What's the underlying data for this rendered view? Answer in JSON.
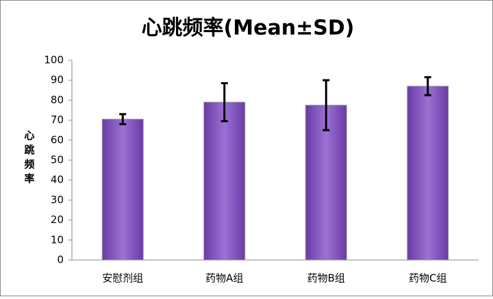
{
  "chart_data": {
    "type": "bar",
    "title": "心跳频率(Mean±SD)",
    "y_label": "心跳频率",
    "categories": [
      "安慰剂组",
      "药物A组",
      "药物B组",
      "药物C组"
    ],
    "values": [
      70.5,
      79,
      77.5,
      87
    ],
    "errors": [
      2.5,
      9.5,
      12.5,
      4.5
    ],
    "color": "#7f4fbf",
    "error_color": "#000000",
    "ylim": [
      0,
      100
    ],
    "yticks": [
      0,
      10,
      20,
      30,
      40,
      50,
      60,
      70,
      80,
      90,
      100
    ],
    "grid": false
  }
}
